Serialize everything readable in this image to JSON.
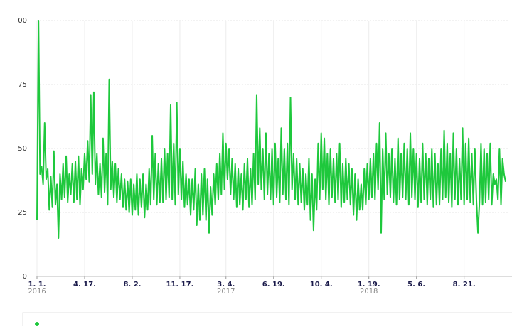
{
  "chart_data": {
    "type": "line",
    "color": "#1ec83c",
    "grid": true,
    "ylim": [
      0,
      100
    ],
    "yticks": [
      0,
      25,
      50,
      75,
      {
        "value": 100,
        "label": "00"
      }
    ],
    "categories": [
      "1. 1.",
      null,
      null,
      null,
      null,
      null,
      null,
      null,
      null,
      null,
      null,
      null,
      null,
      null,
      null,
      null,
      null,
      null,
      null,
      null,
      null,
      null,
      null,
      null,
      null,
      null,
      null,
      null,
      null,
      null,
      null,
      "4. 17.",
      null,
      null,
      null,
      null,
      null,
      null,
      null,
      null,
      null,
      null,
      null,
      null,
      null,
      null,
      null,
      null,
      null,
      null,
      null,
      null,
      null,
      null,
      null,
      null,
      null,
      null,
      null,
      null,
      null,
      null,
      "8. 2.",
      null,
      null,
      null,
      null,
      null,
      null,
      null,
      null,
      null,
      null,
      null,
      null,
      null,
      null,
      null,
      null,
      null,
      null,
      null,
      null,
      null,
      null,
      null,
      null,
      null,
      null,
      null,
      null,
      null,
      null,
      "11. 17.",
      null,
      null,
      null,
      null,
      null,
      null,
      null,
      null,
      null,
      null,
      null,
      null,
      null,
      null,
      null,
      null,
      null,
      null,
      null,
      null,
      null,
      null,
      null,
      null,
      null,
      null,
      null,
      null,
      null,
      "3. 4.",
      null,
      null,
      null,
      null,
      null,
      null,
      null,
      null,
      null,
      null,
      null,
      null,
      null,
      null,
      null,
      null,
      null,
      null,
      null,
      null,
      null,
      null,
      null,
      null,
      null,
      null,
      null,
      null,
      null,
      null,
      "6. 19.",
      null,
      null,
      null,
      null,
      null,
      null,
      null,
      null,
      null,
      null,
      null,
      null,
      null,
      null,
      null,
      null,
      null,
      null,
      null,
      null,
      null,
      null,
      null,
      null,
      null,
      null,
      null,
      null,
      null,
      null,
      "10. 4.",
      null,
      null,
      null,
      null,
      null,
      null,
      null,
      null,
      null,
      null,
      null,
      null,
      null,
      null,
      null,
      null,
      null,
      null,
      null,
      null,
      null,
      null,
      null,
      null,
      null,
      null,
      null,
      null,
      null,
      null,
      "1. 19.",
      null,
      null,
      null,
      null,
      null,
      null,
      null,
      null,
      null,
      null,
      null,
      null,
      null,
      null,
      null,
      null,
      null,
      null,
      null,
      null,
      null,
      null,
      null,
      null,
      null,
      null,
      null,
      null,
      null,
      null,
      "5. 6.",
      null,
      null,
      null,
      null,
      null,
      null,
      null,
      null,
      null,
      null,
      null,
      null,
      null,
      null,
      null,
      null,
      null,
      null,
      null,
      null,
      null,
      null,
      null,
      null,
      null,
      null,
      null,
      null,
      null,
      null,
      "8. 21.",
      null,
      null,
      null,
      null,
      null,
      null,
      null,
      null,
      null,
      null,
      null,
      null,
      null,
      null,
      null,
      null,
      null,
      null,
      null,
      null,
      null,
      null,
      null,
      null,
      null,
      null,
      null
    ],
    "category_years": [
      "2016",
      null,
      null,
      null,
      "2017",
      null,
      null,
      "2018",
      null,
      null
    ],
    "values": [
      22,
      100,
      40,
      43,
      36,
      60,
      38,
      42,
      26,
      39,
      27,
      49,
      28,
      36,
      15,
      40,
      30,
      44,
      31,
      47,
      29,
      40,
      32,
      44,
      29,
      45,
      30,
      47,
      28,
      42,
      34,
      48,
      38,
      53,
      37,
      71,
      40,
      72,
      36,
      48,
      32,
      44,
      31,
      54,
      33,
      48,
      28,
      77,
      34,
      45,
      31,
      44,
      29,
      42,
      30,
      40,
      27,
      38,
      26,
      37,
      25,
      38,
      24,
      36,
      26,
      40,
      24,
      38,
      27,
      40,
      23,
      36,
      26,
      42,
      28,
      55,
      30,
      48,
      28,
      44,
      29,
      46,
      29,
      50,
      30,
      48,
      31,
      67,
      30,
      52,
      28,
      68,
      32,
      50,
      30,
      45,
      27,
      40,
      28,
      38,
      24,
      38,
      26,
      42,
      20,
      36,
      22,
      40,
      24,
      42,
      22,
      38,
      17,
      35,
      24,
      40,
      28,
      44,
      30,
      48,
      32,
      56,
      34,
      52,
      38,
      50,
      32,
      46,
      30,
      44,
      27,
      42,
      28,
      40,
      26,
      44,
      30,
      46,
      27,
      42,
      28,
      48,
      30,
      71,
      36,
      58,
      34,
      50,
      30,
      56,
      32,
      48,
      30,
      50,
      28,
      52,
      31,
      46,
      29,
      58,
      32,
      50,
      30,
      52,
      28,
      70,
      34,
      48,
      30,
      46,
      28,
      44,
      29,
      42,
      26,
      40,
      28,
      46,
      22,
      40,
      18,
      38,
      26,
      52,
      30,
      56,
      34,
      54,
      30,
      48,
      28,
      50,
      31,
      46,
      29,
      48,
      30,
      52,
      27,
      44,
      29,
      46,
      30,
      44,
      28,
      42,
      24,
      40,
      22,
      38,
      26,
      36,
      26,
      42,
      28,
      44,
      30,
      46,
      31,
      48,
      30,
      52,
      34,
      60,
      17,
      50,
      30,
      56,
      32,
      48,
      31,
      50,
      29,
      46,
      28,
      54,
      30,
      48,
      31,
      52,
      30,
      50,
      28,
      56,
      31,
      50,
      30,
      48,
      27,
      46,
      29,
      52,
      30,
      48,
      28,
      46,
      30,
      50,
      27,
      48,
      28,
      44,
      28,
      50,
      30,
      57,
      31,
      52,
      29,
      48,
      27,
      56,
      30,
      50,
      28,
      46,
      30,
      58,
      28,
      52,
      30,
      54,
      29,
      48,
      28,
      50,
      30,
      17,
      29,
      52,
      28,
      50,
      29,
      48,
      30,
      52,
      28,
      40,
      36,
      38,
      30,
      50,
      28,
      46,
      40,
      37
    ]
  }
}
